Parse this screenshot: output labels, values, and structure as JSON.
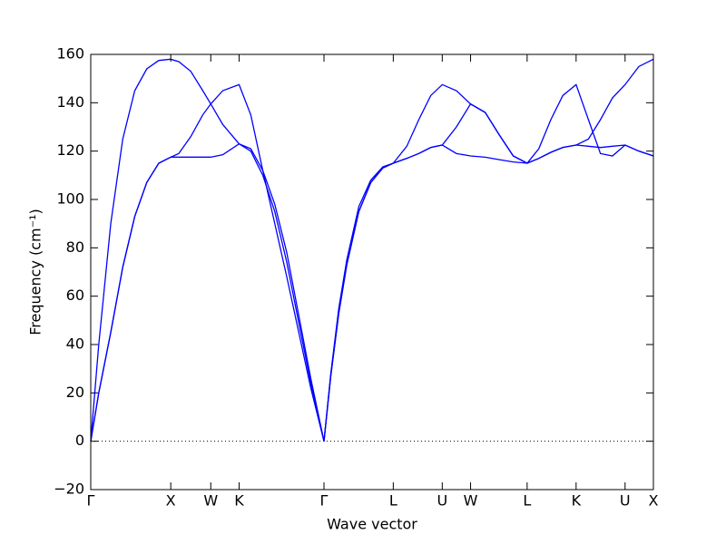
{
  "chart_data": {
    "type": "line",
    "xlabel": "Wave vector",
    "ylabel": "Frequency (cm⁻¹)",
    "xlim": [
      0,
      7.032
    ],
    "ylim": [
      -20,
      160
    ],
    "xticks": [
      {
        "value": 0,
        "label": "Γ"
      },
      {
        "value": 1,
        "label": "X"
      },
      {
        "value": 1.5,
        "label": "W"
      },
      {
        "value": 1.854,
        "label": "K"
      },
      {
        "value": 2.915,
        "label": "Γ"
      },
      {
        "value": 3.781,
        "label": "L"
      },
      {
        "value": 4.393,
        "label": "U"
      },
      {
        "value": 4.747,
        "label": "W"
      },
      {
        "value": 5.454,
        "label": "L"
      },
      {
        "value": 6.066,
        "label": "K"
      },
      {
        "value": 6.678,
        "label": "U"
      },
      {
        "value": 7.032,
        "label": "X"
      }
    ],
    "yticks": [
      {
        "value": -20,
        "label": "−20"
      },
      0,
      20,
      40,
      60,
      80,
      100,
      120,
      140,
      160
    ],
    "zero_line": true,
    "x": [
      0,
      0.1,
      0.25,
      0.4,
      0.55,
      0.7,
      0.85,
      1,
      1.1,
      1.25,
      1.4,
      1.5,
      1.65,
      1.854,
      2.0,
      2.15,
      2.3,
      2.45,
      2.6,
      2.75,
      2.915,
      3.0,
      3.1,
      3.2,
      3.35,
      3.5,
      3.65,
      3.781,
      3.95,
      4.1,
      4.25,
      4.393,
      4.57,
      4.747,
      4.93,
      5.1,
      5.28,
      5.454,
      5.6,
      5.75,
      5.9,
      6.066,
      6.22,
      6.37,
      6.52,
      6.678,
      6.85,
      7.032
    ],
    "series": [
      {
        "color": "#0000ff",
        "values": [
          0,
          40,
          90,
          125,
          145,
          154,
          157.5,
          158,
          157,
          153,
          145,
          139.5,
          131,
          123,
          121,
          112,
          98,
          78,
          52,
          26,
          0,
          28,
          55,
          75,
          97,
          108,
          113.5,
          115,
          122,
          133,
          143,
          147.5,
          145,
          139.5,
          136,
          127,
          118,
          115,
          121,
          133,
          143,
          147.5,
          133,
          119,
          118,
          122.5,
          120,
          118
        ]
      },
      {
        "color": "#0000ff",
        "values": [
          0,
          20,
          45,
          72,
          93,
          107,
          115,
          117.5,
          119,
          126,
          135,
          139.5,
          145,
          147.5,
          135,
          112,
          90,
          68,
          45,
          22,
          0,
          27,
          53,
          73,
          95,
          107,
          113,
          115,
          117,
          119,
          121.5,
          122.5,
          130,
          139.5,
          136,
          127,
          118,
          115,
          117,
          119.5,
          121.5,
          122.5,
          125,
          133,
          142,
          147.5,
          155,
          158
        ]
      },
      {
        "color": "#0000ff",
        "values": [
          0,
          20,
          45,
          72,
          93,
          107,
          115,
          117.5,
          117.5,
          117.5,
          117.5,
          117.5,
          118.5,
          123,
          120,
          110,
          95,
          74,
          49,
          24,
          0,
          27,
          53,
          73,
          95,
          107,
          113,
          115,
          117,
          119,
          121.5,
          122.5,
          119,
          118,
          117.5,
          116.5,
          115.5,
          115,
          117,
          119.5,
          121.5,
          122.5,
          122,
          121.5,
          122,
          122.5,
          120,
          118
        ]
      }
    ]
  }
}
